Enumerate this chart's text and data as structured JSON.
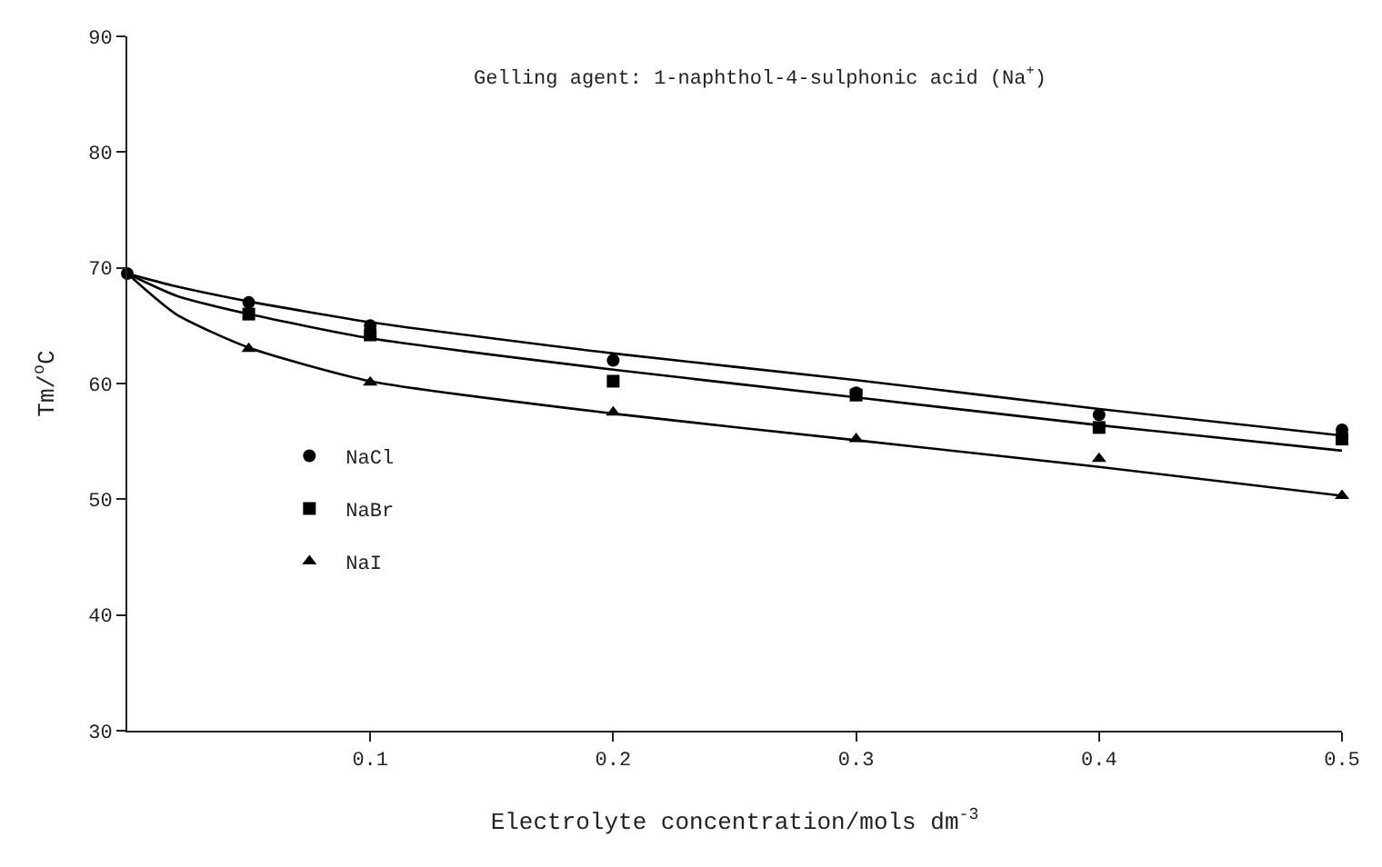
{
  "chart_data": {
    "type": "scatter",
    "title": "Gelling agent: 1-naphthol-4-sulphonic acid (Na$^{+}$)",
    "xlabel": "Electrolyte concentration/mols dm$^{-3}$",
    "ylabel": "Tm/$^{o}$C",
    "xlim": [
      0,
      0.5
    ],
    "xticks": [
      0.1,
      0.2,
      0.3,
      0.4,
      0.5
    ],
    "ylim": [
      30,
      90
    ],
    "yticks": [
      30,
      40,
      50,
      60,
      70,
      80,
      90
    ],
    "legend": "left",
    "series": [
      {
        "name": "NaCl",
        "marker": "circle",
        "color": "#000000",
        "x": [
          0,
          0.05,
          0.1,
          0.2,
          0.3,
          0.4,
          0.5
        ],
        "values": [
          69.5,
          67,
          65,
          62,
          59.2,
          57.3,
          56
        ]
      },
      {
        "name": "NaBr",
        "marker": "square",
        "color": "#000000",
        "x": [
          0.05,
          0.1,
          0.2,
          0.3,
          0.4,
          0.5
        ],
        "values": [
          66,
          64.2,
          60.2,
          59,
          56.2,
          55.2
        ]
      },
      {
        "name": "NaI",
        "marker": "triangle",
        "color": "#000000",
        "x": [
          0.05,
          0.1,
          0.2,
          0.3,
          0.4,
          0.5
        ],
        "values": [
          63,
          60.1,
          57.5,
          55.2,
          53.5,
          50.3
        ]
      },
      {
        "type": "line",
        "marker": "none",
        "line_style": "solid",
        "color": "#000000",
        "x": [
          0,
          0.02,
          0.05,
          0.1,
          0.2,
          0.3,
          0.4,
          0.5
        ],
        "values": [
          69.5,
          68.4,
          67.1,
          65.3,
          62.6,
          60.3,
          57.8,
          55.5
        ]
      },
      {
        "type": "line",
        "marker": "none",
        "line_style": "solid",
        "color": "#000000",
        "x": [
          0,
          0.02,
          0.05,
          0.1,
          0.2,
          0.3,
          0.4,
          0.5
        ],
        "values": [
          69.5,
          67.6,
          66.0,
          63.9,
          61.2,
          58.8,
          56.4,
          54.2
        ]
      },
      {
        "type": "line",
        "marker": "none",
        "line_style": "solid",
        "color": "#000000",
        "x": [
          0,
          0.02,
          0.05,
          0.1,
          0.2,
          0.3,
          0.4,
          0.5
        ],
        "values": [
          69.5,
          66,
          63.1,
          60.2,
          57.4,
          55.1,
          52.8,
          50.3
        ]
      }
    ]
  }
}
